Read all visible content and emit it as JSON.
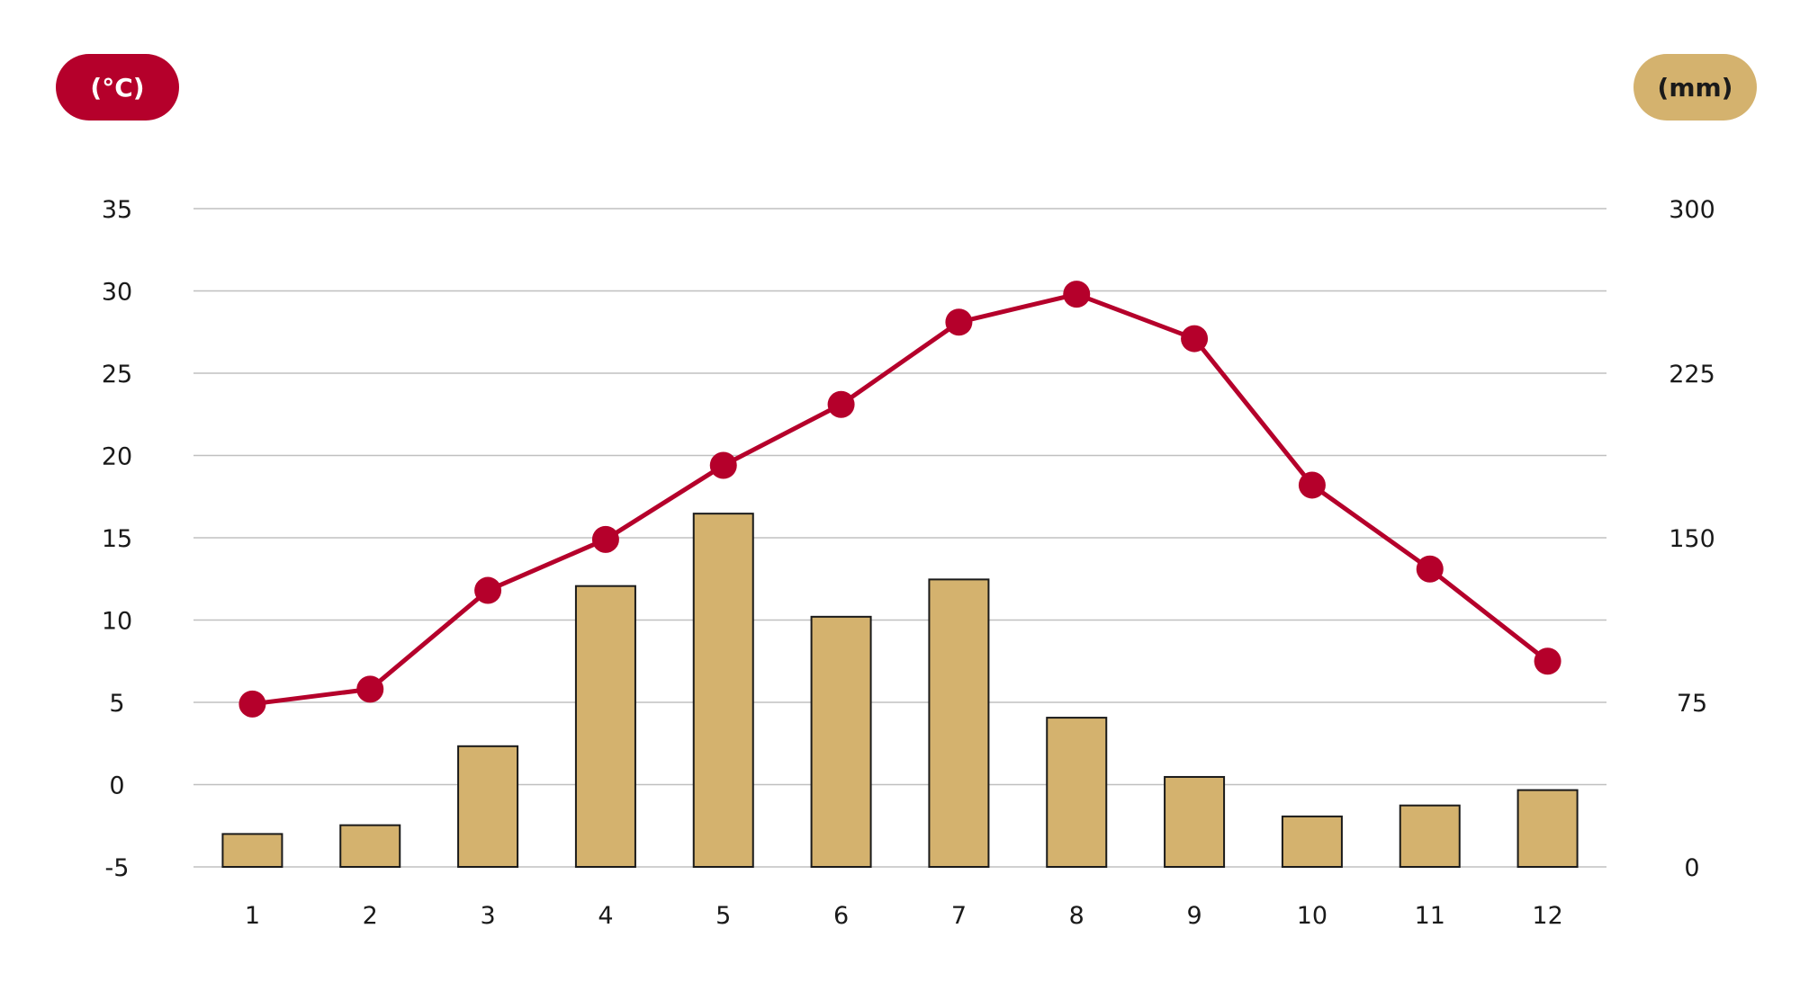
{
  "units": {
    "left": "(°C)",
    "right": "(mm)"
  },
  "colors": {
    "temperature": "#b5002b",
    "precipitation": "#d4b26e",
    "grid": "#c0c0c0",
    "bar_stroke": "#1a1a1a"
  },
  "chart_data": {
    "type": "bar+line",
    "title": "",
    "x": [
      "1",
      "2",
      "3",
      "4",
      "5",
      "6",
      "7",
      "8",
      "9",
      "10",
      "11",
      "12"
    ],
    "series": [
      {
        "type": "bar",
        "axis": "right",
        "values": [
          15,
          19,
          55,
          128,
          161,
          114,
          131,
          68,
          41,
          23,
          28,
          35
        ]
      },
      {
        "type": "line",
        "axis": "left",
        "values": [
          4.9,
          5.8,
          11.8,
          14.9,
          19.4,
          23.1,
          28.1,
          29.8,
          27.1,
          18.2,
          13.1,
          7.5
        ]
      }
    ],
    "y_left": {
      "ticks": [
        "35",
        "30",
        "25",
        "20",
        "15",
        "10",
        "5",
        "0",
        "-5"
      ],
      "ylim": [
        -5,
        35
      ]
    },
    "y_right": {
      "ticks": [
        "300",
        "225",
        "150",
        "75",
        "0"
      ],
      "ylim": [
        0,
        300
      ]
    },
    "grid": true
  }
}
